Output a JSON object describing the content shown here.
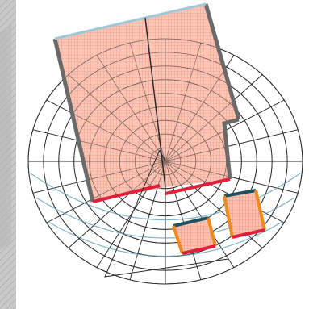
{
  "diagram": {
    "colors": {
      "background": "#ffffff",
      "left_band": "#c4c4c4",
      "hatch": "#9a9a9a",
      "grid_line": "#2a2a2a",
      "circle_blue": "#7fb4c6",
      "fill": "#f8c2b2",
      "fill_grid": "#ef7c63",
      "outline": "#6a6a6a",
      "edge_red": "#e0203a",
      "edge_orange": "#f08a1c",
      "edge_teal": "#20505e",
      "edge_lightblue": "#9ec8d8"
    }
  }
}
